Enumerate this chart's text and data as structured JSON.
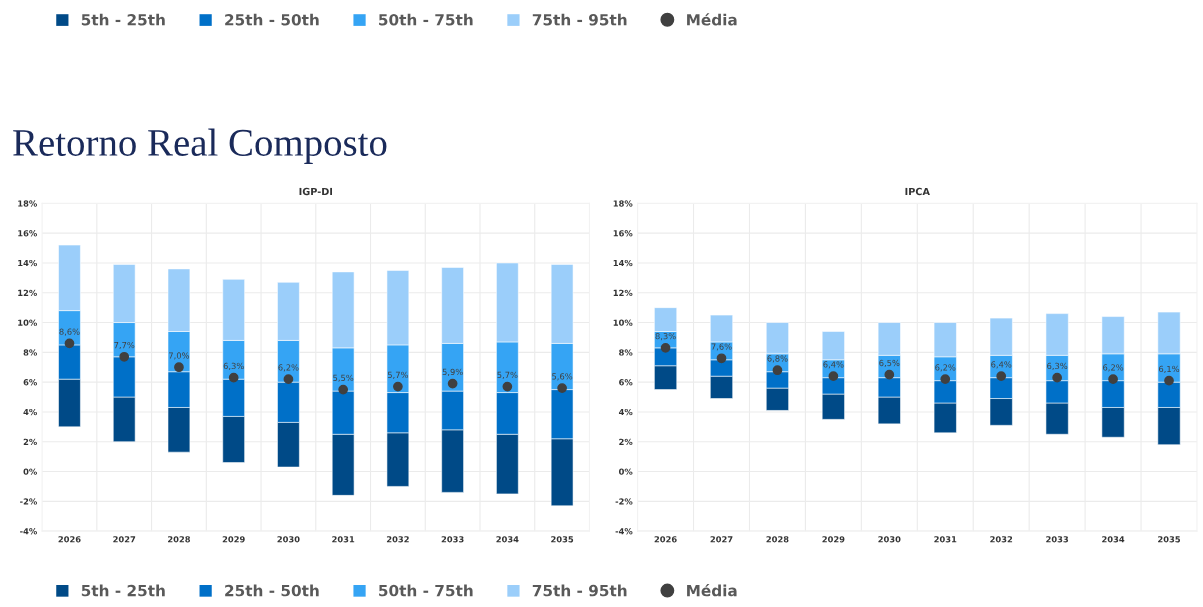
{
  "chart_data": [
    {
      "type": "bar",
      "title": "IGP-DI",
      "legend": "top",
      "grid": true,
      "annotations": [
        "Retorno Real Composto"
      ],
      "categories": [
        "2026",
        "2027",
        "2028",
        "2029",
        "2030",
        "2031",
        "2032",
        "2033",
        "2034",
        "2035"
      ],
      "ylim": [
        -4,
        18
      ],
      "yticks": [
        {
          "value": -4,
          "label": "-4%"
        },
        {
          "value": -2,
          "label": "-2%"
        },
        {
          "value": 0,
          "label": "0%"
        },
        {
          "value": 2,
          "label": "2%"
        },
        {
          "value": 4,
          "label": "4%"
        },
        {
          "value": 6,
          "label": "6%"
        },
        {
          "value": 8,
          "label": "8%"
        },
        {
          "value": 10,
          "label": "10%"
        },
        {
          "value": 12,
          "label": "12%"
        },
        {
          "value": 14,
          "label": "14%"
        },
        {
          "value": 16,
          "label": "16%"
        },
        {
          "value": 18,
          "label": "18%"
        }
      ],
      "series": [
        {
          "name": "5th - 25th",
          "color": "#004a87",
          "base": [
            3.0,
            2.0,
            1.3,
            0.6,
            0.3,
            -1.6,
            -1.0,
            -1.4,
            -1.5,
            -2.3
          ],
          "values": [
            3.2,
            3.0,
            3.0,
            3.1,
            3.0,
            4.1,
            3.6,
            4.2,
            4.0,
            4.5
          ]
        },
        {
          "name": "25th - 50th",
          "color": "#0070c8",
          "base": [
            6.2,
            5.0,
            4.3,
            3.7,
            3.3,
            2.5,
            2.6,
            2.8,
            2.5,
            2.2
          ],
          "values": [
            2.3,
            2.7,
            2.4,
            2.5,
            2.7,
            2.9,
            2.7,
            2.6,
            2.8,
            3.3
          ]
        },
        {
          "name": "50th - 75th",
          "color": "#35a4f4",
          "base": [
            8.5,
            7.7,
            6.7,
            6.2,
            6.0,
            5.4,
            5.3,
            5.4,
            5.3,
            5.5
          ],
          "values": [
            2.3,
            2.3,
            2.7,
            2.6,
            2.8,
            2.9,
            3.2,
            3.2,
            3.4,
            3.1
          ]
        },
        {
          "name": "75th - 95th",
          "color": "#9bcefa",
          "base": [
            10.8,
            10.0,
            9.4,
            8.8,
            8.8,
            8.3,
            8.5,
            8.6,
            8.7,
            8.6
          ],
          "values": [
            4.4,
            3.9,
            4.2,
            4.1,
            3.9,
            5.1,
            5.0,
            5.1,
            5.3,
            5.3
          ]
        },
        {
          "name": "Média",
          "type": "scatter",
          "marker": "circle",
          "color": "#404040",
          "values": [
            8.6,
            7.7,
            7.0,
            6.3,
            6.2,
            5.5,
            5.7,
            5.9,
            5.7,
            5.6
          ],
          "value_labels": [
            "8,6%",
            "7,7%",
            "7,0%",
            "6,3%",
            "6,2%",
            "5,5%",
            "5,7%",
            "5,9%",
            "5,7%",
            "5,6%"
          ]
        }
      ]
    },
    {
      "type": "bar",
      "title": "IPCA",
      "legend": "bottom",
      "grid": true,
      "categories": [
        "2026",
        "2027",
        "2028",
        "2029",
        "2030",
        "2031",
        "2032",
        "2033",
        "2034",
        "2035"
      ],
      "ylim": [
        -4,
        18
      ],
      "yticks": [
        {
          "value": -4,
          "label": "-4%"
        },
        {
          "value": -2,
          "label": "-2%"
        },
        {
          "value": 0,
          "label": "0%"
        },
        {
          "value": 2,
          "label": "2%"
        },
        {
          "value": 4,
          "label": "4%"
        },
        {
          "value": 6,
          "label": "6%"
        },
        {
          "value": 8,
          "label": "8%"
        },
        {
          "value": 10,
          "label": "10%"
        },
        {
          "value": 12,
          "label": "12%"
        },
        {
          "value": 14,
          "label": "14%"
        },
        {
          "value": 16,
          "label": "16%"
        },
        {
          "value": 18,
          "label": "18%"
        }
      ],
      "series": [
        {
          "name": "5th - 25th",
          "color": "#004a87",
          "base": [
            5.5,
            4.9,
            4.1,
            3.5,
            3.2,
            2.6,
            3.1,
            2.5,
            2.3,
            1.8
          ],
          "values": [
            1.6,
            1.5,
            1.5,
            1.7,
            1.8,
            2.0,
            1.8,
            2.1,
            2.0,
            2.5
          ]
        },
        {
          "name": "25th - 50th",
          "color": "#0070c8",
          "base": [
            7.1,
            6.4,
            5.6,
            5.2,
            5.0,
            4.6,
            4.9,
            4.6,
            4.3,
            4.3
          ],
          "values": [
            1.2,
            1.1,
            1.1,
            1.1,
            1.3,
            1.5,
            1.4,
            1.5,
            1.8,
            1.7
          ]
        },
        {
          "name": "50th - 75th",
          "color": "#35a4f4",
          "base": [
            8.3,
            7.5,
            6.7,
            6.3,
            6.3,
            6.1,
            6.3,
            6.1,
            6.1,
            6.0
          ],
          "values": [
            1.1,
            1.2,
            1.2,
            1.2,
            1.5,
            1.6,
            1.5,
            1.7,
            1.8,
            1.9
          ]
        },
        {
          "name": "75th - 95th",
          "color": "#9bcefa",
          "base": [
            9.4,
            8.7,
            7.9,
            7.5,
            7.8,
            7.7,
            7.8,
            7.8,
            7.9,
            7.9
          ],
          "values": [
            1.6,
            1.8,
            2.1,
            1.9,
            2.2,
            2.3,
            2.5,
            2.8,
            2.5,
            2.8
          ]
        },
        {
          "name": "Média",
          "type": "scatter",
          "marker": "circle",
          "color": "#404040",
          "values": [
            8.3,
            7.6,
            6.8,
            6.4,
            6.5,
            6.2,
            6.4,
            6.3,
            6.2,
            6.1
          ],
          "value_labels": [
            "8,3%",
            "7,6%",
            "6,8%",
            "6,4%",
            "6,5%",
            "6,2%",
            "6,4%",
            "6,3%",
            "6,2%",
            "6,1%"
          ]
        }
      ]
    }
  ]
}
